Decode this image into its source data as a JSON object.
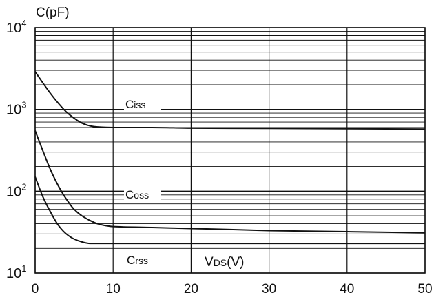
{
  "chart_data": {
    "type": "line",
    "ylabel": "C(pF)",
    "xlabel": "VDS(V)",
    "xlabel_main": "V",
    "xlabel_sub": "DS",
    "xlabel_unit": "(V)",
    "xlim": [
      0,
      50
    ],
    "xticks": [
      0,
      10,
      20,
      30,
      40,
      50
    ],
    "xtick_labels": [
      "0",
      "10",
      "20",
      "30",
      "40",
      "50"
    ],
    "ylim": [
      10,
      10000
    ],
    "yscale": "log",
    "yticks": [
      {
        "base": "10",
        "exp": "1",
        "value": 10
      },
      {
        "base": "10",
        "exp": "2",
        "value": 100
      },
      {
        "base": "10",
        "exp": "3",
        "value": 1000
      },
      {
        "base": "10",
        "exp": "4",
        "value": 10000
      }
    ],
    "grid": true,
    "series": [
      {
        "name": "Ciss",
        "main": "C",
        "sub": "iss",
        "x": [
          0,
          1,
          2,
          3,
          4,
          5,
          6,
          7,
          8,
          10,
          15,
          20,
          30,
          40,
          50
        ],
        "y": [
          2900,
          2100,
          1550,
          1180,
          930,
          780,
          680,
          630,
          610,
          600,
          600,
          590,
          585,
          580,
          575
        ]
      },
      {
        "name": "Coss",
        "main": "C",
        "sub": "oss",
        "x": [
          0,
          1,
          2,
          3,
          4,
          5,
          6,
          7,
          8,
          9,
          10,
          15,
          20,
          25,
          30,
          40,
          50
        ],
        "y": [
          550,
          310,
          180,
          115,
          80,
          60,
          50,
          44,
          40,
          38,
          37,
          36,
          35,
          34,
          33,
          32,
          31
        ]
      },
      {
        "name": "Crss",
        "main": "C",
        "sub": "rss",
        "x": [
          0,
          1,
          2,
          3,
          4,
          5,
          6,
          7,
          8,
          10,
          20,
          30,
          40,
          50
        ],
        "y": [
          150,
          85,
          55,
          38,
          30,
          26,
          24,
          23,
          23,
          23,
          23,
          23,
          23,
          23
        ]
      }
    ],
    "colors": {
      "line": "#111111",
      "grid": "#111111",
      "background": "#ffffff"
    }
  }
}
